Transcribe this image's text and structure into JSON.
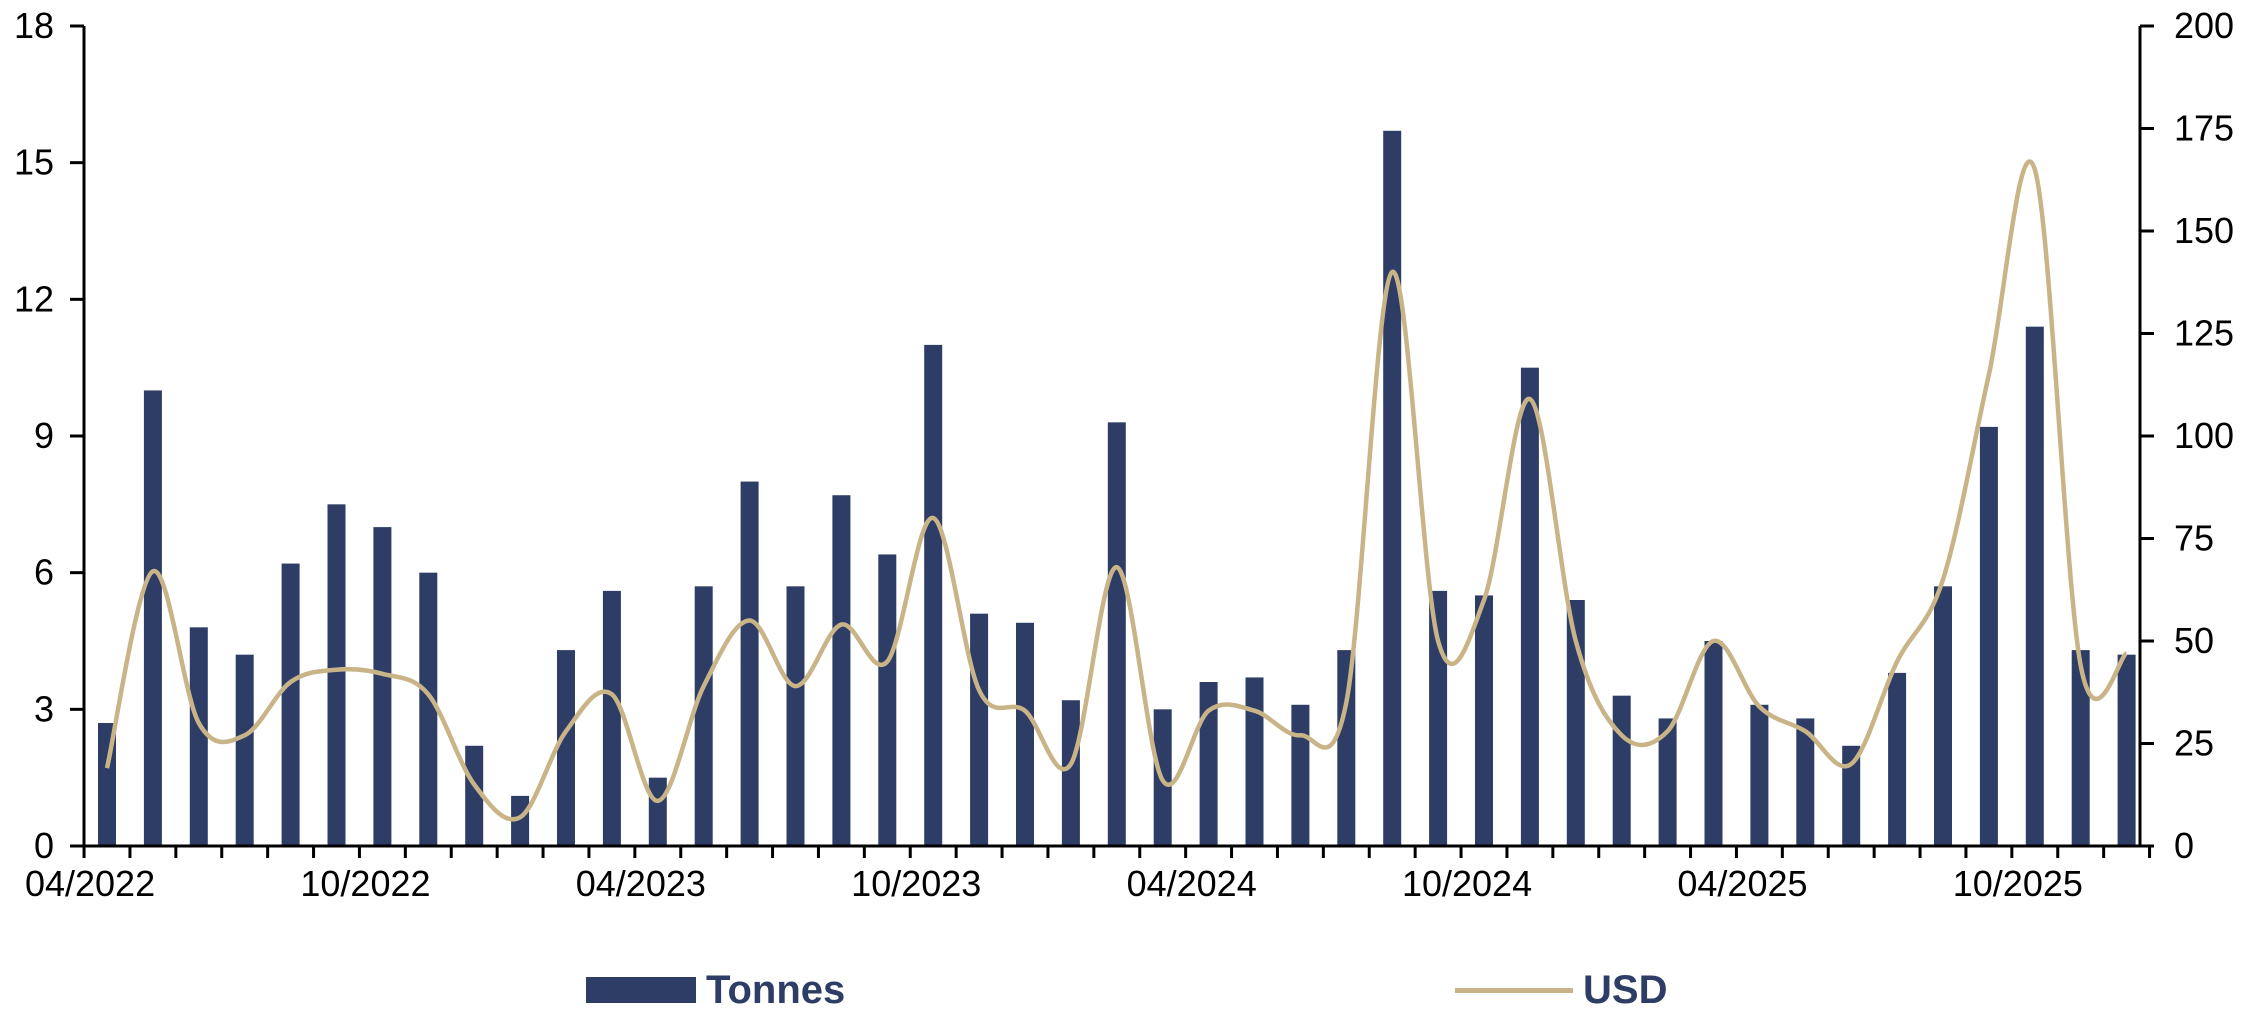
{
  "chart_data": {
    "type": "bar",
    "title": "",
    "x_tick_labels": [
      "04/2022",
      "10/2022",
      "04/2023",
      "10/2023",
      "04/2024",
      "10/2024",
      "04/2025",
      "10/2025"
    ],
    "x_start": "2022-04",
    "y_left": {
      "min": 0,
      "max": 18,
      "ticks": [
        "0",
        "3",
        "6",
        "9",
        "12",
        "15",
        "18"
      ]
    },
    "y_right": {
      "min": 0,
      "max": 200,
      "ticks": [
        "0",
        "25",
        "50",
        "75",
        "100",
        "125",
        "150",
        "175",
        "200"
      ]
    },
    "grid": false,
    "legend_position": "bottom",
    "series": [
      {
        "name": "Tonnes",
        "type": "bar",
        "axis": "left",
        "color": "#2e3d66",
        "values": [
          2.7,
          10.0,
          4.8,
          4.2,
          6.2,
          7.5,
          7.0,
          6.0,
          2.2,
          1.1,
          4.3,
          5.6,
          1.5,
          5.7,
          8.0,
          5.7,
          7.7,
          6.4,
          11.0,
          5.1,
          4.9,
          3.2,
          9.3,
          3.0,
          3.6,
          3.7,
          3.1,
          4.3,
          15.7,
          5.6,
          5.5,
          10.5,
          5.4,
          3.3,
          2.8,
          4.5,
          3.1,
          2.8,
          2.2,
          3.8,
          5.7,
          9.2,
          11.4,
          4.3,
          4.2
        ]
      },
      {
        "name": "USD",
        "type": "line",
        "axis": "right",
        "color": "#c8b487",
        "values": [
          19,
          67,
          30,
          27,
          40,
          43,
          42,
          37,
          15,
          7,
          28,
          37,
          11,
          39,
          55,
          39,
          54,
          45,
          80,
          38,
          33,
          20,
          68,
          16,
          33,
          33,
          27,
          35,
          140,
          50,
          60,
          109,
          50,
          27,
          28,
          50,
          34,
          28,
          20,
          45,
          65,
          115,
          165,
          44,
          47
        ]
      }
    ]
  }
}
